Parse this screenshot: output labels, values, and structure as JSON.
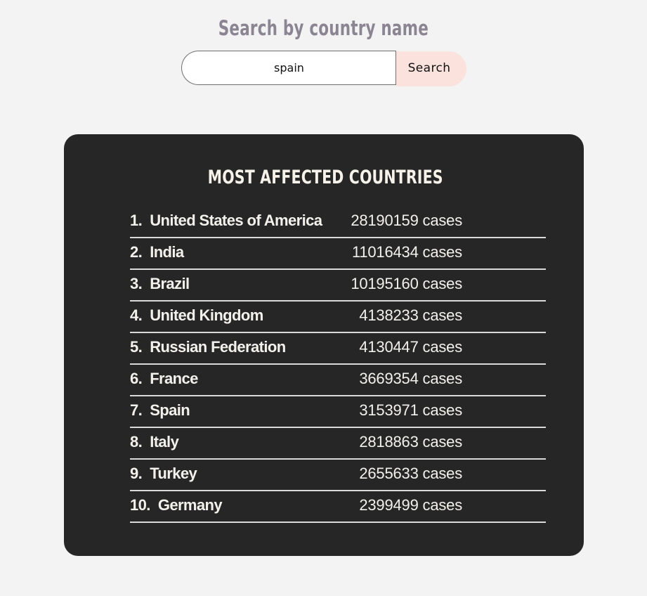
{
  "search": {
    "heading": "Search by country name",
    "input_value": "spain",
    "button_label": "Search"
  },
  "panel": {
    "title": "MOST AFFECTED COUNTRIES",
    "rows": [
      {
        "rank": "1.",
        "country": "United States of America",
        "cases": "28190159 cases"
      },
      {
        "rank": "2.",
        "country": "India",
        "cases": "11016434 cases"
      },
      {
        "rank": "3.",
        "country": "Brazil",
        "cases": "10195160 cases"
      },
      {
        "rank": "4.",
        "country": "United Kingdom",
        "cases": "4138233 cases"
      },
      {
        "rank": "5.",
        "country": "Russian Federation",
        "cases": "4130447 cases"
      },
      {
        "rank": "6.",
        "country": "France",
        "cases": "3669354 cases"
      },
      {
        "rank": "7.",
        "country": "Spain",
        "cases": "3153971 cases"
      },
      {
        "rank": "8.",
        "country": "Italy",
        "cases": "2818863 cases"
      },
      {
        "rank": "9.",
        "country": "Turkey",
        "cases": "2655633 cases"
      },
      {
        "rank": "10.",
        "country": "Germany",
        "cases": "2399499 cases"
      }
    ]
  },
  "colors": {
    "page_background": "#f3f3f3",
    "heading": "#8b8593",
    "button_background": "#fbe2dc",
    "panel_background": "#262626",
    "panel_text": "#f3f1ec"
  }
}
